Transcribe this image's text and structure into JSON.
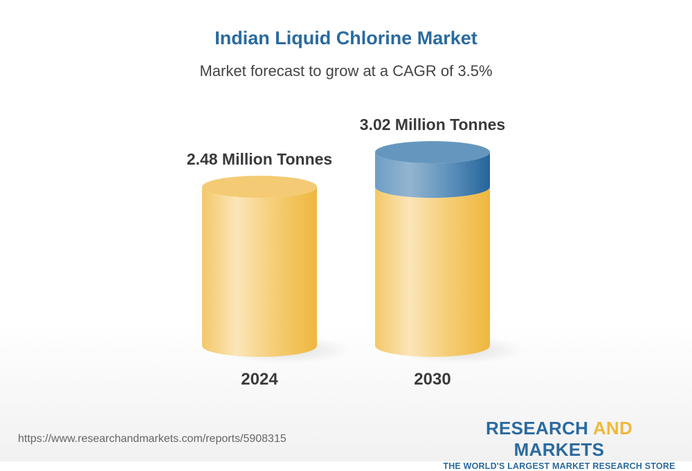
{
  "title": "Indian Liquid Chlorine Market",
  "subtitle": "Market forecast to grow at a CAGR of 3.5%",
  "chart_data": {
    "type": "bar",
    "style": "3d-cylinder",
    "categories": [
      "2024",
      "2030"
    ],
    "values": [
      2.48,
      3.02
    ],
    "unit": "Million Tonnes",
    "data_labels": [
      "2.48 Million Tonnes",
      "3.02 Million Tonnes"
    ],
    "title": "Indian Liquid Chlorine Market",
    "subtitle": "Market forecast to grow at a CAGR of 3.5%",
    "grid": false,
    "colors": {
      "base": "#f3c35a",
      "growth": "#2a6aa0"
    }
  },
  "footer": {
    "url": "https://www.researchandmarkets.com/reports/5908315",
    "logo_part1": "RESEARCH ",
    "logo_part2": "AND",
    "logo_part3": " MARKETS",
    "tagline": "THE WORLD'S LARGEST MARKET RESEARCH STORE"
  }
}
